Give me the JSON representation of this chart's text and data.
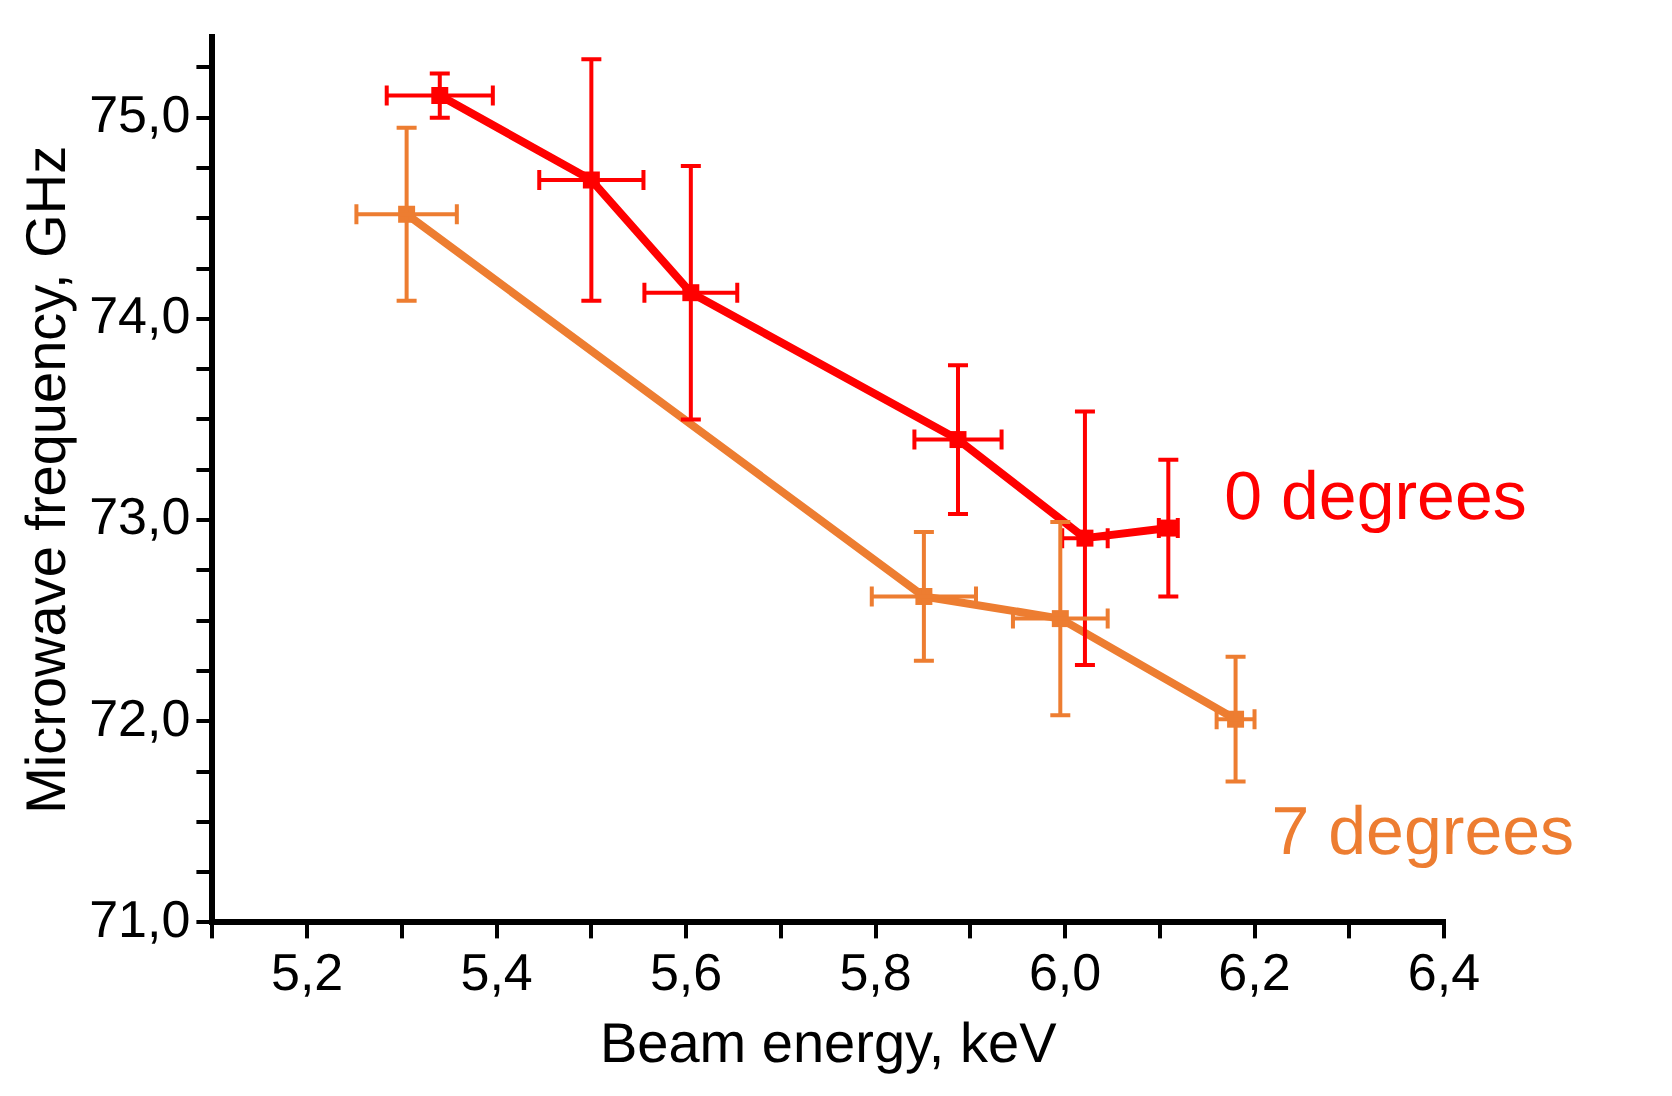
{
  "chart_data": {
    "type": "line",
    "xlabel": "Beam energy, keV",
    "ylabel": "Microwave frequency, GHz",
    "xlim": [
      5.1,
      6.4
    ],
    "xticks": [
      {
        "value": 5.1,
        "label": null
      },
      {
        "value": 5.2,
        "label": "5,2"
      },
      {
        "value": 5.3,
        "label": null
      },
      {
        "value": 5.4,
        "label": "5,4"
      },
      {
        "value": 5.5,
        "label": null
      },
      {
        "value": 5.6,
        "label": "5,6"
      },
      {
        "value": 5.7,
        "label": null
      },
      {
        "value": 5.8,
        "label": "5,8"
      },
      {
        "value": 5.9,
        "label": null
      },
      {
        "value": 6.0,
        "label": "6,0"
      },
      {
        "value": 6.1,
        "label": null
      },
      {
        "value": 6.2,
        "label": "6,2"
      },
      {
        "value": 6.3,
        "label": null
      },
      {
        "value": 6.4,
        "label": "6,4"
      }
    ],
    "ylim": [
      71,
      75.4
    ],
    "yticks": [
      {
        "value": 71,
        "label": "71,0"
      },
      {
        "value": 71.25,
        "label": null
      },
      {
        "value": 71.5,
        "label": null
      },
      {
        "value": 71.75,
        "label": null
      },
      {
        "value": 72,
        "label": "72,0"
      },
      {
        "value": 72.25,
        "label": null
      },
      {
        "value": 72.5,
        "label": null
      },
      {
        "value": 72.75,
        "label": null
      },
      {
        "value": 73,
        "label": "73,0"
      },
      {
        "value": 73.25,
        "label": null
      },
      {
        "value": 73.5,
        "label": null
      },
      {
        "value": 73.75,
        "label": null
      },
      {
        "value": 74,
        "label": "74,0"
      },
      {
        "value": 74.25,
        "label": null
      },
      {
        "value": 74.5,
        "label": null
      },
      {
        "value": 74.75,
        "label": null
      },
      {
        "value": 75,
        "label": "75,0"
      },
      {
        "value": 75.25,
        "label": null
      }
    ],
    "marker": "square",
    "line_style": "solid",
    "grid": false,
    "legend": false,
    "series": [
      {
        "name": "0 degrees",
        "color": "#ff0000",
        "x": [
          5.34,
          5.5,
          5.605,
          5.887,
          6.021,
          6.109
        ],
        "values": [
          75.11,
          74.69,
          74.13,
          73.4,
          72.91,
          72.96
        ],
        "errors": [
          0.11,
          0.6,
          0.63,
          0.37,
          0.63,
          0.34
        ],
        "xerrors": [
          0.056,
          0.055,
          0.049,
          0.046,
          0.024,
          0.01
        ]
      },
      {
        "name": "7 degrees",
        "color": "#ed7d31",
        "x": [
          5.305,
          5.851,
          5.995,
          6.18
        ],
        "values": [
          74.52,
          72.62,
          72.51,
          72.01
        ],
        "errors": [
          0.43,
          0.32,
          0.48,
          0.31
        ],
        "xerrors": [
          0.053,
          0.055,
          0.05,
          0.02
        ]
      }
    ]
  }
}
